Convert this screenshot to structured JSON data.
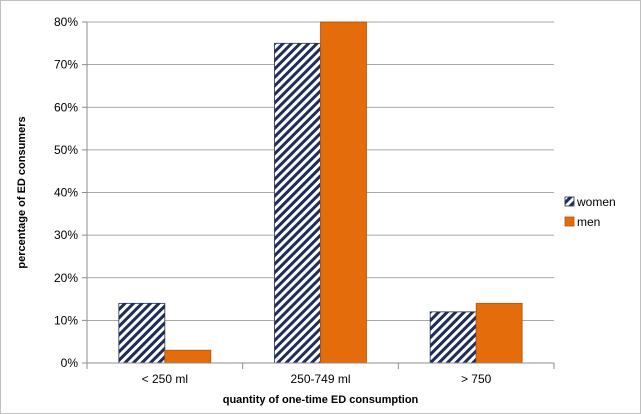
{
  "chart_data": {
    "type": "bar",
    "categories": [
      "< 250 ml",
      "250-749 ml",
      "> 750"
    ],
    "series": [
      {
        "name": "women",
        "values": [
          14,
          75,
          12
        ],
        "pattern": "diagonal-hatch",
        "color": "#1f2d5a"
      },
      {
        "name": "men",
        "values": [
          3,
          80,
          14
        ],
        "color": "#e46c0a"
      }
    ],
    "xlabel": "quantity of one-time ED consumption",
    "ylabel": "percentage of ED consumers",
    "ylim": [
      0,
      80
    ],
    "yticks": [
      "0%",
      "10%",
      "20%",
      "30%",
      "40%",
      "50%",
      "60%",
      "70%",
      "80%"
    ],
    "ytick_values": [
      0,
      10,
      20,
      30,
      40,
      50,
      60,
      70,
      80
    ],
    "grid": true,
    "legend_position": "right"
  }
}
